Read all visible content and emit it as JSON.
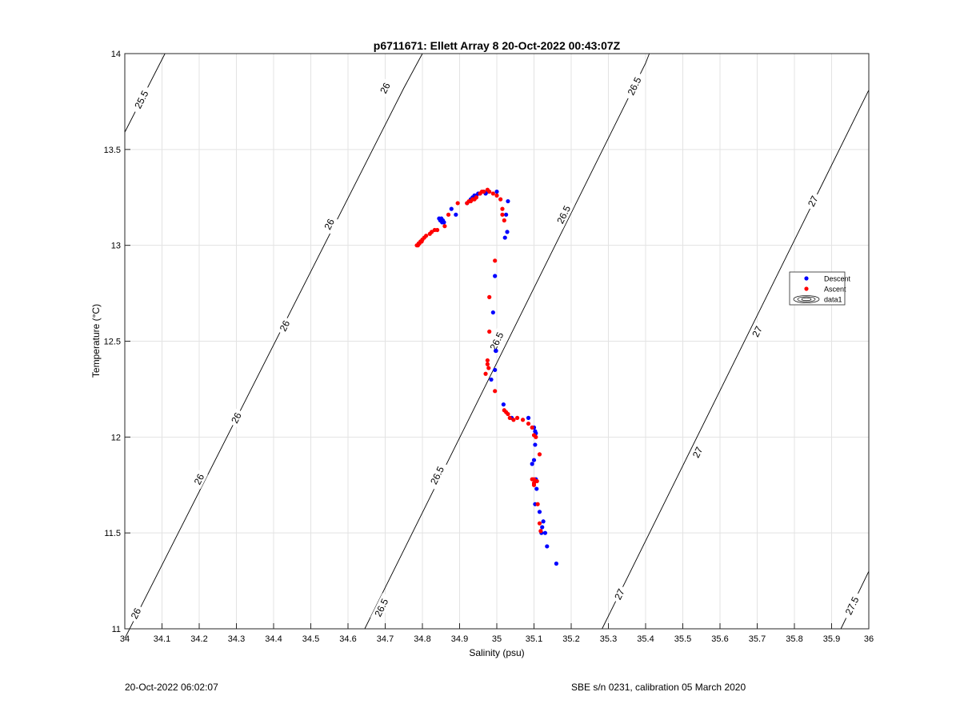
{
  "chart_data": {
    "type": "scatter",
    "title": "p6711671: Ellett Array 8 20-Oct-2022 00:43:07Z",
    "xlabel": "Salinity (psu)",
    "ylabel": "Temperature (°C)",
    "xlim": [
      34,
      36
    ],
    "ylim": [
      11,
      14
    ],
    "xticks": [
      34,
      34.1,
      34.2,
      34.3,
      34.4,
      34.5,
      34.6,
      34.7,
      34.8,
      34.9,
      35,
      35.1,
      35.2,
      35.3,
      35.4,
      35.5,
      35.6,
      35.7,
      35.8,
      35.9,
      36
    ],
    "xtick_labels": [
      "34",
      "34.1",
      "34.2",
      "34.3",
      "34.4",
      "34.5",
      "34.6",
      "34.7",
      "34.8",
      "34.9",
      "35",
      "35.1",
      "35.2",
      "35.3",
      "35.4",
      "35.5",
      "35.6",
      "35.7",
      "35.8",
      "35.9",
      "36"
    ],
    "yticks": [
      11,
      11.5,
      12,
      12.5,
      13,
      13.5,
      14
    ],
    "ytick_labels": [
      "11",
      "11.5",
      "12",
      "12.5",
      "13",
      "13.5",
      "14"
    ],
    "grid": true,
    "legend_position": "right",
    "legend": [
      {
        "label": "Descent",
        "marker": "dot",
        "color": "#0000ff"
      },
      {
        "label": "Ascent",
        "marker": "dot",
        "color": "#ff0000"
      },
      {
        "label": "data1",
        "marker": "contour"
      }
    ],
    "series": [
      {
        "name": "Descent",
        "color": "#0000ff",
        "x": [
          34.845,
          34.848,
          34.851,
          34.853,
          34.855,
          34.858,
          34.878,
          34.89,
          34.92,
          34.93,
          34.935,
          34.94,
          34.945,
          34.95,
          34.955,
          34.965,
          34.97,
          34.975,
          35.0,
          35.03,
          35.025,
          35.028,
          35.022,
          34.995,
          34.997,
          34.99,
          34.995,
          34.985,
          34.998,
          35.018,
          35.04,
          35.085,
          35.1,
          35.103,
          35.105,
          35.103,
          35.1,
          35.095,
          35.105,
          35.107,
          35.103,
          35.115,
          35.125,
          35.122,
          35.12,
          35.13,
          35.135,
          35.16
        ],
        "y": [
          13.14,
          13.13,
          13.14,
          13.12,
          13.13,
          13.12,
          13.19,
          13.16,
          13.22,
          13.24,
          13.25,
          13.26,
          13.26,
          13.27,
          13.27,
          13.28,
          13.27,
          13.28,
          13.28,
          13.23,
          13.16,
          13.07,
          13.04,
          12.84,
          12.45,
          12.65,
          12.35,
          12.3,
          12.45,
          12.17,
          12.1,
          12.1,
          12.05,
          12.03,
          12.02,
          11.96,
          11.88,
          11.86,
          11.78,
          11.73,
          11.65,
          11.61,
          11.56,
          11.53,
          11.5,
          11.5,
          11.43,
          11.34
        ]
      },
      {
        "name": "Ascent",
        "color": "#ff0000",
        "x": [
          34.785,
          34.788,
          34.79,
          34.792,
          34.795,
          34.798,
          34.8,
          34.805,
          34.81,
          34.82,
          34.825,
          34.833,
          34.84,
          34.86,
          34.87,
          34.895,
          34.92,
          34.925,
          34.93,
          34.935,
          34.94,
          34.945,
          34.955,
          34.96,
          34.965,
          34.975,
          34.98,
          34.99,
          35.0,
          35.01,
          35.015,
          35.02,
          35.015,
          34.995,
          34.98,
          34.98,
          34.975,
          34.978,
          34.97,
          34.975,
          34.995,
          35.02,
          35.025,
          35.03,
          35.035,
          35.045,
          35.055,
          35.07,
          35.085,
          35.095,
          35.1,
          35.105,
          35.1,
          35.115,
          35.095,
          35.1,
          35.1,
          35.108,
          35.11,
          35.115,
          35.118
        ],
        "y": [
          13.0,
          13.0,
          13.01,
          13.01,
          13.02,
          13.02,
          13.03,
          13.04,
          13.05,
          13.06,
          13.07,
          13.08,
          13.08,
          13.1,
          13.16,
          13.22,
          13.22,
          13.23,
          13.23,
          13.24,
          13.24,
          13.25,
          13.27,
          13.28,
          13.28,
          13.29,
          13.28,
          13.27,
          13.26,
          13.24,
          13.19,
          13.13,
          13.16,
          12.92,
          12.73,
          12.55,
          12.4,
          12.36,
          12.33,
          12.38,
          12.24,
          12.14,
          12.13,
          12.12,
          12.1,
          12.09,
          12.1,
          12.09,
          12.07,
          12.05,
          12.01,
          12.0,
          11.78,
          11.91,
          11.78,
          11.76,
          11.75,
          11.77,
          11.65,
          11.55,
          11.51
        ]
      },
      {
        "name": "data1",
        "type": "contour",
        "description_levels": [
          25.5,
          26,
          26.5,
          27,
          27.5
        ],
        "lines": [
          {
            "level": 25.5,
            "points": [
              [
                34,
                13.59
              ],
              [
                34.108,
                14
              ]
            ],
            "labels": [
              {
                "text": "25.5",
                "x": 34.045,
                "y": 13.76
              }
            ]
          },
          {
            "level": 26,
            "points": [
              [
                34,
                10.95
              ],
              [
                34.75,
                13.82
              ],
              [
                34.8,
                14
              ]
            ],
            "labels": [
              {
                "text": "26",
                "x": 34.3,
                "y": 12.1
              },
              {
                "text": "26",
                "x": 34.2,
                "y": 11.78
              },
              {
                "text": "26",
                "x": 34.43,
                "y": 12.58
              },
              {
                "text": "26",
                "x": 34.55,
                "y": 13.11
              },
              {
                "text": "26",
                "x": 34.7,
                "y": 13.82
              },
              {
                "text": "26",
                "x": 34.03,
                "y": 11.08
              }
            ]
          },
          {
            "level": 26.5,
            "points": [
              [
                34.645,
                11
              ],
              [
                35.4,
                13.95
              ],
              [
                35.41,
                14
              ]
            ],
            "labels": [
              {
                "text": "26.5",
                "x": 34.69,
                "y": 11.11
              },
              {
                "text": "26.5",
                "x": 34.84,
                "y": 11.8
              },
              {
                "text": "26.5",
                "x": 35.0,
                "y": 12.5
              },
              {
                "text": "26.5",
                "x": 35.18,
                "y": 13.16
              },
              {
                "text": "26.5",
                "x": 35.37,
                "y": 13.83
              }
            ]
          },
          {
            "level": 27,
            "points": [
              [
                35.283,
                11
              ],
              [
                36,
                13.81
              ]
            ],
            "labels": [
              {
                "text": "27",
                "x": 35.33,
                "y": 11.18
              },
              {
                "text": "27",
                "x": 35.54,
                "y": 11.92
              },
              {
                "text": "27",
                "x": 35.7,
                "y": 12.55
              },
              {
                "text": "27",
                "x": 35.85,
                "y": 13.23
              }
            ]
          },
          {
            "level": 27.5,
            "points": [
              [
                35.925,
                11
              ],
              [
                36,
                11.3
              ]
            ],
            "labels": [
              {
                "text": "27.5",
                "x": 35.955,
                "y": 11.12
              }
            ]
          }
        ]
      }
    ]
  },
  "footer": {
    "left": "20-Oct-2022 06:02:07",
    "right": "SBE s/n 0231, calibration 05 March 2020"
  }
}
